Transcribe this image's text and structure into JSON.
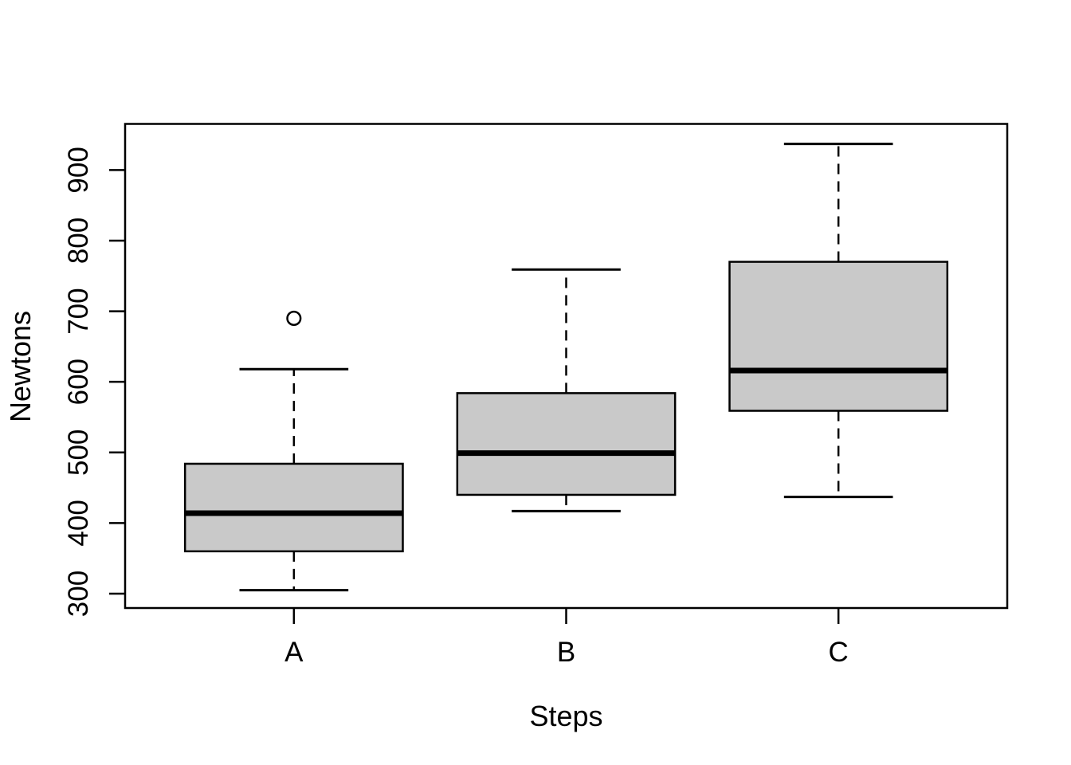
{
  "chart_data": {
    "type": "boxplot",
    "title": "",
    "xlabel": "Steps",
    "ylabel": "Newtons",
    "categories": [
      "A",
      "B",
      "C"
    ],
    "y_ticks": [
      300,
      400,
      500,
      600,
      700,
      800,
      900
    ],
    "ylim": [
      279.7,
      965.3
    ],
    "xlim": [
      0.38,
      3.62
    ],
    "box_width": 0.8,
    "grid": false,
    "legend": null,
    "series": [
      {
        "name": "A",
        "position": 1,
        "whisker_low": 305,
        "q1": 360,
        "median": 414,
        "q3": 484,
        "whisker_high": 618,
        "outliers": [
          690
        ]
      },
      {
        "name": "B",
        "position": 2,
        "whisker_low": 417,
        "q1": 440,
        "median": 499,
        "q3": 584,
        "whisker_high": 759,
        "outliers": []
      },
      {
        "name": "C",
        "position": 3,
        "whisker_low": 437,
        "q1": 559,
        "median": 616,
        "q3": 770,
        "whisker_high": 937,
        "outliers": []
      }
    ],
    "colors": {
      "box_fill": "#c9c9c9",
      "line": "#000000",
      "background": "#ffffff"
    }
  }
}
